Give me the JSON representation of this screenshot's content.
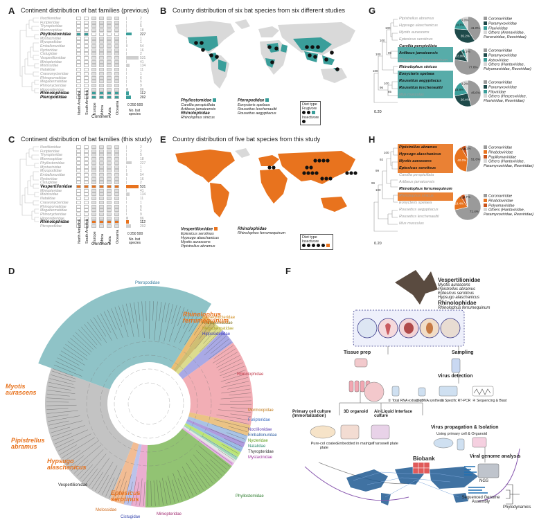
{
  "panels": {
    "A": {
      "label": "A",
      "title": "Continent distribution of bat families (previous)",
      "families": [
        "Noctilionidae",
        "Furipteridae",
        "Thyropteridae",
        "Mormoopidae",
        "Phyllostomidae",
        "Mystacinidae",
        "Myzopodidae",
        "Emballonuridae",
        "Nycteridae",
        "Cistugidae",
        "Vespertilionidae",
        "Miniopteridae",
        "Molossidae",
        "Natalidae",
        "Craseonycteridae",
        "Rhinopomatidae",
        "Megadermatidae",
        "Rhinonycteridae",
        "Hipposideridae",
        "Rhinolophidae",
        "Pteropodidae"
      ],
      "counts": [
        "2",
        "2",
        "5",
        "18",
        "227",
        "1",
        "1",
        "54",
        "16",
        "2",
        "531",
        "41",
        "134",
        "11",
        "1",
        "6",
        "6",
        "9",
        "86",
        "112",
        "202"
      ],
      "highlight": [
        "Phyllostomidae",
        "Rhinolophidae",
        "Pteropodidae"
      ],
      "continents": [
        "North America",
        "South America",
        "Europe",
        "Africa",
        "Asia",
        "Oceania"
      ],
      "xlabel": "Continent",
      "count_axis": [
        "0",
        "250",
        "500"
      ],
      "count_label": "No. bat species"
    },
    "B": {
      "label": "B",
      "title": "Country distribution of six bat species from six different studies",
      "legend_families": [
        {
          "family": "Phyllostomidae",
          "species": [
            "Carollia perspicillata",
            "Artibeus jamaicensis"
          ]
        },
        {
          "family": "Rhinolophidae",
          "species": [
            "Rhinolophus sinicus"
          ]
        },
        {
          "family": "Pteropodidae",
          "species": [
            "Eonycteris spelaea",
            "Rousettus leschenaultii",
            "Rousettus aegyptiacus"
          ]
        }
      ],
      "diet_title": "Diet type",
      "diet_items": [
        "Frugivore",
        "Insectivore"
      ]
    },
    "C": {
      "label": "C",
      "title": "Continent distribution of bat families (this study)",
      "highlight": [
        "Vespertilionidae",
        "Rhinolophidae"
      ],
      "xlabel": "Continent",
      "count_label": "No. bat species"
    },
    "E": {
      "label": "E",
      "title": "Country distribution of five bat species from this study",
      "legend_families": [
        {
          "family": "Vespertilionidae",
          "species": [
            "Eptesicus serotinus",
            "Hypsugo alaschanicus",
            "Myotis aurascens",
            "Pipistrellus abramus"
          ]
        },
        {
          "family": "Rhinolophidae",
          "species": [
            "Rhinolophus ferrumequinum"
          ]
        }
      ],
      "diet_title": "Diet type",
      "diet_items": [
        "Insectivore"
      ]
    },
    "D": {
      "label": "D",
      "families_outer": [
        "Pteropodidae",
        "Craseonycteridae",
        "Rhinopomatidae",
        "Megadermatidae",
        "Hipposideridae",
        "Rhinolophidae",
        "Mormoopidae",
        "Furipteridae",
        "Noctilionidae",
        "Emballonuridae",
        "Nycteridae",
        "Natalidae",
        "Thyropteridae",
        "Mystacinidae",
        "Phyllostomidae",
        "Miniopteridae",
        "Cistugidae",
        "Molossidae",
        "Vespertilionidae"
      ],
      "callouts": [
        "Rhinolophus ferrumequinum",
        "Myotis aurascens",
        "Pipistrellus abramus",
        "Hypsugo alaschanicus",
        "Eptesicus serotinus"
      ]
    },
    "F": {
      "label": "F",
      "families": [
        {
          "family": "Vespertilionidae",
          "species": [
            "Myotis aurascens",
            "Pipistrellus abramus",
            "Eptesicus serotinus",
            "Hypsugo alaschanicus"
          ]
        },
        {
          "family": "Rhinolophidae",
          "species": [
            "Rhinolophus ferrumequinum"
          ]
        }
      ],
      "tissue_prep": "Tissue prep",
      "sampling": "Sampling",
      "virus_detection": "Virus detection",
      "detection_steps": [
        "Total RNA extraction",
        "cDNA synthesis",
        "Specific RT-PCR",
        "Sequencing & Blast"
      ],
      "primary_culture": "Primary cell culture (Immortalization)",
      "organoid": "3D organoid",
      "ali": "Air-Liquid Interface culture",
      "pure_col": "Pure-col coated plate",
      "matrigel": "Embedded in matrigel",
      "transwell": "Transwell plate",
      "propagation": "Virus propagation & Isolation",
      "propagation_sub": "Using primary cell & Organoid",
      "biobank": "Biobank",
      "genome": "Viral genome analysis",
      "ngs": "NGS",
      "assembly": "Sequenced Genome Assembly",
      "phylo": "Phylodynamics"
    },
    "G": {
      "label": "G",
      "species": [
        "Pipistrellus abramus",
        "Hypsugo alaschanicus",
        "Myotis aurascens",
        "Eptesicus serotinus",
        "Carollia perspicillata",
        "Artibeus jamaicensis",
        "Rhinolophus ferrumequinum",
        "Rhinolophus sinicus",
        "Eonycteris spelaea",
        "Rousettus aegyptiacus",
        "Rousettus leschenaultii",
        "Mus musculus"
      ],
      "bootstraps": [
        "100",
        "100",
        "99",
        "100",
        "100",
        "100",
        "96",
        "85"
      ],
      "scale": "0.20",
      "pies": [
        {
          "values": [
            41.0,
            35.2,
            14.8,
            9.0
          ],
          "labels": [
            "41.0%",
            "35.2%",
            "14.8%",
            "9.0%"
          ],
          "legend": [
            "Coronaviridae",
            "Paramyxoviridae",
            "Flaviviridae",
            "Others (Arenaviridae, Parvoviridae, Reoviridae)"
          ]
        },
        {
          "values": [
            77.6,
            13.9,
            4.4,
            4.1
          ],
          "labels": [
            "77.6%",
            "13.9%",
            "4.4%",
            "4.1%"
          ],
          "legend": [
            "Coronaviridae",
            "Paramyxoviridae",
            "Astroviridae",
            "Others (Hantaviridae, Polyomaviridae, Reoviridae)"
          ]
        },
        {
          "values": [
            45.6,
            26.4,
            18.8,
            9.2
          ],
          "labels": [
            "45.6%",
            "26.4%",
            "18.8%",
            "9.2%"
          ],
          "legend": [
            "Coronaviridae",
            "Paramyxoviridae",
            "Filoviridae",
            "Others (Herpesviridae, Flaviviridae, Reoviridae)"
          ]
        }
      ]
    },
    "H": {
      "label": "H",
      "species": [
        "Pipistrellus abramus",
        "Hypsugo alaschanicus",
        "Myotis aurascens",
        "Eptesicus serotinus",
        "Carollia perspicillata",
        "Artibeus jamaicensis",
        "Rhinolophus ferrumequinum",
        "Rhinolophus sinicus",
        "Eonycteris spelaea",
        "Rousettus aegyptiacus",
        "Rousettus leschenaultii",
        "Mus musculus"
      ],
      "bootstraps": [
        "100",
        "92",
        "99",
        "99",
        "100"
      ],
      "scale": "0.20",
      "pies": [
        {
          "values": [
            51.6,
            40.0,
            6.3,
            2.1
          ],
          "labels": [
            "51.6%",
            "40.0%",
            "6.3%",
            "2.1%"
          ],
          "legend": [
            "Coronaviridae",
            "Rhabdoviridae",
            "Papillomaviridae",
            "Others (Hantaviridae, Paramyxoviridae, Reoviridae)"
          ]
        },
        {
          "values": [
            71.4,
            19.4,
            5.5,
            3.7
          ],
          "labels": [
            "71.4%",
            "19.4%",
            "5.5%",
            "3.7%"
          ],
          "legend": [
            "Coronaviridae",
            "Rhabdoviridae",
            "Polyomaviridae",
            "Others (Hantaviridae, Paramyxoviridae, Reoviridae)"
          ]
        }
      ]
    }
  },
  "colors": {
    "teal": "#3a9e9a",
    "orange": "#e8731e",
    "grey": "#b8b8b8",
    "dark": "#1e4a4a"
  }
}
